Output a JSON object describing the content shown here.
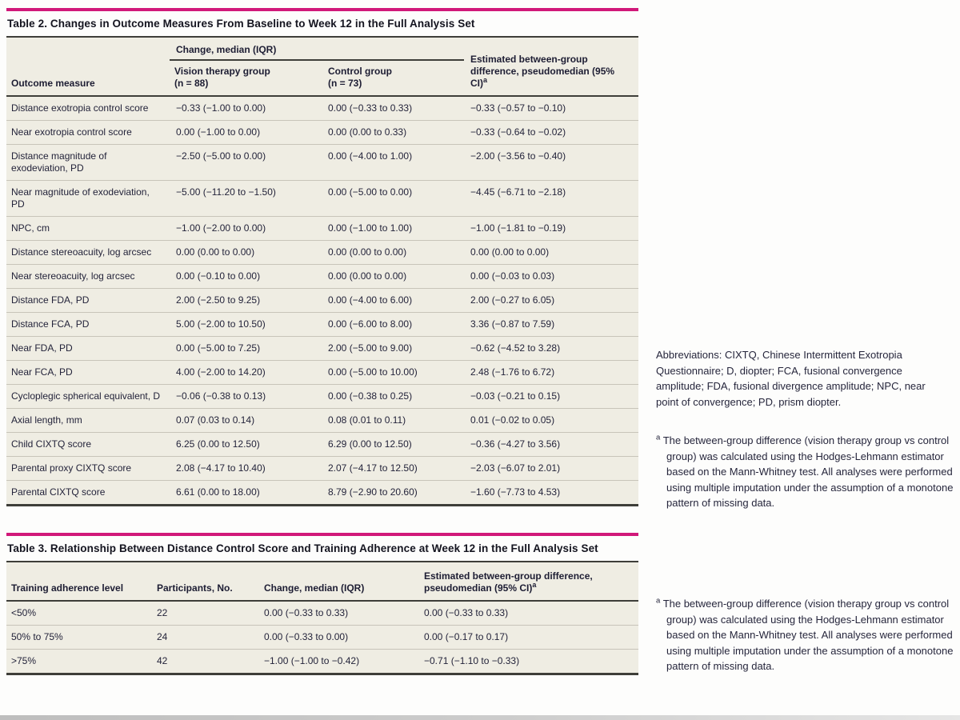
{
  "colors": {
    "accent_rule": "#d11879",
    "table_background": "#efede3",
    "dark_rule": "#3e3e39",
    "row_separator": "#c7c4b9",
    "text": "#23233a"
  },
  "table2": {
    "title": "Table 2. Changes in Outcome Measures From Baseline to Week 12 in the Full Analysis Set",
    "header": {
      "outcome": "Outcome measure",
      "spanner": "Change, median (IQR)",
      "group1_name": "Vision therapy group",
      "group1_n": "(n = 88)",
      "group2_name": "Control group",
      "group2_n": "(n = 73)",
      "diff": "Estimated between-group difference, pseudomedian (95% CI)",
      "footnote_marker": "a"
    },
    "rows": [
      {
        "measure": "Distance exotropia control score",
        "vt": "−0.33 (−1.00 to 0.00)",
        "control": "0.00 (−0.33 to 0.33)",
        "diff": "−0.33 (−0.57 to −0.10)"
      },
      {
        "measure": "Near exotropia control score",
        "vt": "0.00 (−1.00 to 0.00)",
        "control": "0.00 (0.00 to 0.33)",
        "diff": "−0.33 (−0.64 to −0.02)"
      },
      {
        "measure": "Distance magnitude of exodeviation, PD",
        "vt": "−2.50 (−5.00 to 0.00)",
        "control": "0.00 (−4.00 to 1.00)",
        "diff": "−2.00 (−3.56 to −0.40)"
      },
      {
        "measure": "Near magnitude of exodeviation, PD",
        "vt": "−5.00 (−11.20 to −1.50)",
        "control": "0.00 (−5.00 to 0.00)",
        "diff": "−4.45 (−6.71 to −2.18)"
      },
      {
        "measure": "NPC, cm",
        "vt": "−1.00 (−2.00 to 0.00)",
        "control": "0.00 (−1.00 to 1.00)",
        "diff": "−1.00 (−1.81 to −0.19)"
      },
      {
        "measure": "Distance stereoacuity, log arcsec",
        "vt": "0.00 (0.00 to 0.00)",
        "control": "0.00 (0.00 to 0.00)",
        "diff": "0.00 (0.00 to 0.00)"
      },
      {
        "measure": "Near stereoacuity, log arcsec",
        "vt": "0.00 (−0.10 to 0.00)",
        "control": "0.00 (0.00 to 0.00)",
        "diff": "0.00 (−0.03 to 0.03)"
      },
      {
        "measure": "Distance FDA, PD",
        "vt": "2.00 (−2.50 to 9.25)",
        "control": "0.00 (−4.00 to 6.00)",
        "diff": "2.00 (−0.27 to 6.05)"
      },
      {
        "measure": "Distance FCA, PD",
        "vt": "5.00 (−2.00 to 10.50)",
        "control": "0.00 (−6.00 to 8.00)",
        "diff": "3.36 (−0.87 to 7.59)"
      },
      {
        "measure": "Near FDA, PD",
        "vt": "0.00 (−5.00 to 7.25)",
        "control": "2.00 (−5.00 to 9.00)",
        "diff": "−0.62 (−4.52 to 3.28)"
      },
      {
        "measure": "Near FCA, PD",
        "vt": "4.00 (−2.00 to 14.20)",
        "control": "0.00 (−5.00 to 10.00)",
        "diff": "2.48 (−1.76 to 6.72)"
      },
      {
        "measure": "Cycloplegic spherical equivalent, D",
        "vt": "−0.06 (−0.38 to 0.13)",
        "control": "0.00 (−0.38 to 0.25)",
        "diff": "−0.03 (−0.21 to 0.15)"
      },
      {
        "measure": "Axial length, mm",
        "vt": "0.07 (0.03 to 0.14)",
        "control": "0.08 (0.01 to 0.11)",
        "diff": "0.01 (−0.02 to 0.05)"
      },
      {
        "measure": "Child CIXTQ score",
        "vt": "6.25 (0.00 to 12.50)",
        "control": "6.29 (0.00 to 12.50)",
        "diff": "−0.36 (−4.27 to 3.56)"
      },
      {
        "measure": "Parental proxy CIXTQ score",
        "vt": "2.08 (−4.17 to 10.40)",
        "control": "2.07 (−4.17 to 12.50)",
        "diff": "−2.03 (−6.07 to 2.01)"
      },
      {
        "measure": "Parental CIXTQ score",
        "vt": "6.61 (0.00 to 18.00)",
        "control": "8.79 (−2.90 to 20.60)",
        "diff": "−1.60 (−7.73 to 4.53)"
      }
    ]
  },
  "table3": {
    "title": "Table 3. Relationship Between Distance Control Score and Training Adherence at Week 12 in the Full Analysis Set",
    "header": {
      "col1": "Training adherence level",
      "col2": "Participants, No.",
      "col3": "Change, median (IQR)",
      "col4": "Estimated between-group difference, pseudomedian (95% CI)",
      "footnote_marker": "a"
    },
    "rows": [
      {
        "level": "<50%",
        "participants": "22",
        "change": "0.00 (−0.33 to 0.33)",
        "diff": "0.00 (−0.33 to 0.33)"
      },
      {
        "level": "50% to 75%",
        "participants": "24",
        "change": "0.00 (−0.33 to 0.00)",
        "diff": "0.00 (−0.17 to 0.17)"
      },
      {
        "level": ">75%",
        "participants": "42",
        "change": "−1.00 (−1.00 to −0.42)",
        "diff": "−0.71 (−1.10 to −0.33)"
      }
    ]
  },
  "notes": {
    "abbreviations": "Abbreviations: CIXTQ, Chinese Intermittent Exotropia Questionnaire; D, diopter; FCA, fusional convergence amplitude; FDA, fusional divergence amplitude; NPC, near point of convergence; PD, prism diopter.",
    "footnote_marker": "a",
    "footnote_a": "The between-group difference (vision therapy group vs control group) was calculated using the Hodges-Lehmann estimator based on the Mann-Whitney test. All analyses were performed using multiple imputation under the assumption of a monotone pattern of missing data."
  }
}
